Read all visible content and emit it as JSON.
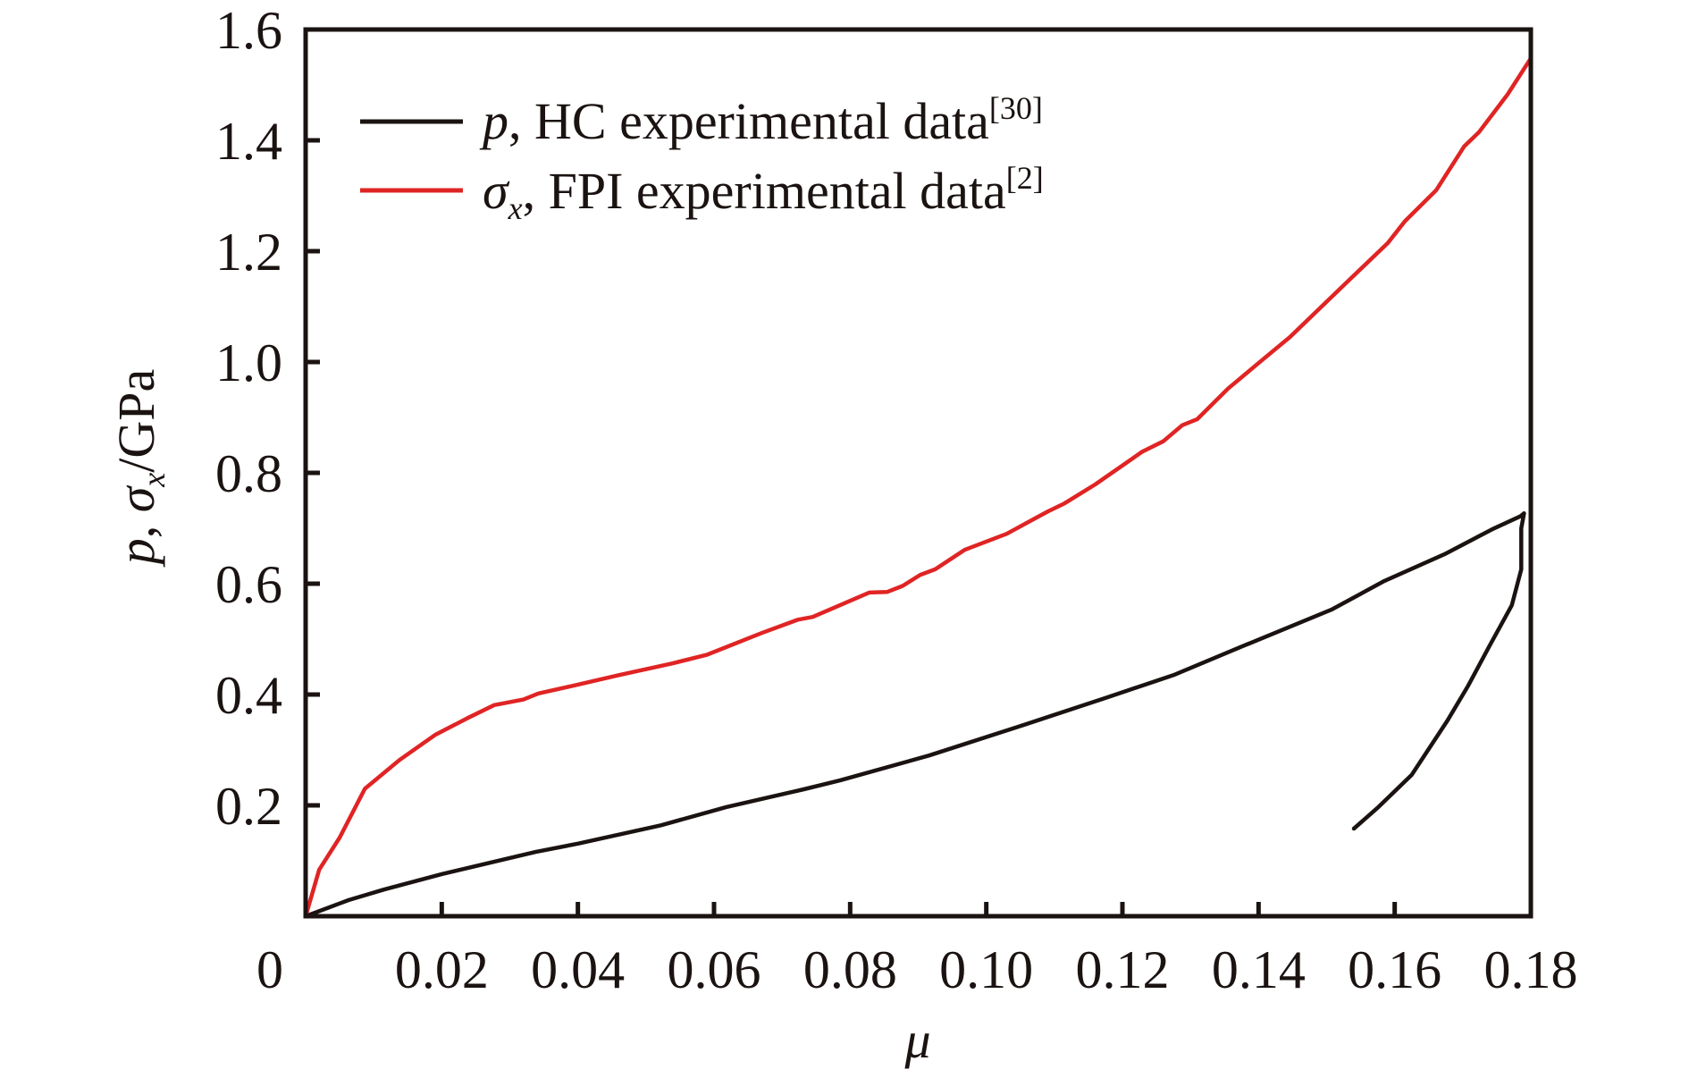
{
  "chart_data": {
    "type": "line",
    "title": "",
    "xlabel": "μ",
    "ylabel": {
      "parts": [
        {
          "text": "p",
          "italic": true
        },
        {
          "text": ", ",
          "italic": false
        },
        {
          "text": "σ",
          "italic": true
        },
        {
          "text": "x",
          "italic": true,
          "subscript": true
        },
        {
          "text": "/GPa",
          "italic": false
        }
      ],
      "plain": "p, σx/GPa"
    },
    "xlim": [
      0,
      0.18
    ],
    "ylim": [
      0,
      1.6
    ],
    "grid": false,
    "legend_position": "top-left",
    "x_ticks": [
      {
        "value": 0,
        "label": "0"
      },
      {
        "value": 0.02,
        "label": "0.02"
      },
      {
        "value": 0.04,
        "label": "0.04"
      },
      {
        "value": 0.06,
        "label": "0.06"
      },
      {
        "value": 0.08,
        "label": "0.08"
      },
      {
        "value": 0.1,
        "label": "0.10"
      },
      {
        "value": 0.12,
        "label": "0.12"
      },
      {
        "value": 0.14,
        "label": "0.14"
      },
      {
        "value": 0.16,
        "label": "0.16"
      },
      {
        "value": 0.18,
        "label": "0.18"
      }
    ],
    "y_ticks": [
      {
        "value": 0.2,
        "label": "0.2"
      },
      {
        "value": 0.4,
        "label": "0.4"
      },
      {
        "value": 0.6,
        "label": "0.6"
      },
      {
        "value": 0.8,
        "label": "0.8"
      },
      {
        "value": 1.0,
        "label": "1.0"
      },
      {
        "value": 1.2,
        "label": "1.2"
      },
      {
        "value": 1.4,
        "label": "1.4"
      },
      {
        "value": 1.6,
        "label": "1.6"
      }
    ],
    "series": [
      {
        "name": "p, HC experimental data[30]",
        "legend": {
          "symbol": "p",
          "sub": "",
          "text": ", HC experimental data",
          "ref": "[30]"
        },
        "color": "#1a1311",
        "x": [
          0,
          0.0063,
          0.0115,
          0.02,
          0.0338,
          0.04,
          0.0522,
          0.0618,
          0.0732,
          0.0785,
          0.0916,
          0.1047,
          0.1178,
          0.1275,
          0.1376,
          0.1507,
          0.1585,
          0.1673,
          0.1743,
          0.1785,
          0.179,
          0.1786,
          0.1786,
          0.1772,
          0.1739,
          0.1708,
          0.1677,
          0.1625,
          0.1576,
          0.154
        ],
        "y": [
          0,
          0.029,
          0.048,
          0.076,
          0.116,
          0.131,
          0.164,
          0.197,
          0.229,
          0.245,
          0.29,
          0.342,
          0.395,
          0.435,
          0.487,
          0.553,
          0.605,
          0.653,
          0.698,
          0.722,
          0.727,
          0.7,
          0.626,
          0.561,
          0.487,
          0.416,
          0.352,
          0.255,
          0.197,
          0.158
        ]
      },
      {
        "name": "σx, FPI experimental data[2]",
        "legend": {
          "symbol": "σ",
          "sub": "x",
          "text": ", FPI experimental data",
          "ref": "[2]"
        },
        "color": "#e02424",
        "x": [
          0,
          0.002,
          0.005,
          0.0087,
          0.0138,
          0.019,
          0.0237,
          0.0277,
          0.032,
          0.0342,
          0.039,
          0.046,
          0.0538,
          0.059,
          0.067,
          0.0723,
          0.0745,
          0.0828,
          0.0854,
          0.0877,
          0.0903,
          0.0925,
          0.0968,
          0.103,
          0.109,
          0.1115,
          0.116,
          0.1229,
          0.126,
          0.1288,
          0.131,
          0.1355,
          0.1396,
          0.1446,
          0.1529,
          0.159,
          0.1615,
          0.1661,
          0.1702,
          0.1724,
          0.1766,
          0.18
        ],
        "y": [
          0,
          0.084,
          0.142,
          0.23,
          0.282,
          0.327,
          0.357,
          0.381,
          0.391,
          0.402,
          0.415,
          0.435,
          0.456,
          0.472,
          0.511,
          0.535,
          0.54,
          0.584,
          0.585,
          0.596,
          0.616,
          0.626,
          0.661,
          0.69,
          0.73,
          0.745,
          0.779,
          0.838,
          0.857,
          0.886,
          0.897,
          0.952,
          0.994,
          1.045,
          1.143,
          1.215,
          1.254,
          1.31,
          1.389,
          1.415,
          1.483,
          1.548
        ]
      }
    ]
  }
}
